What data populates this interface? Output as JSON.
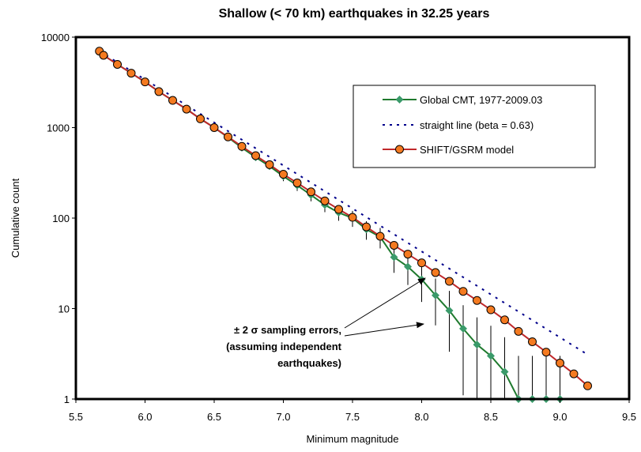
{
  "chart_data": {
    "type": "line",
    "title": "Shallow (< 70 km) earthquakes in 32.25 years",
    "xlabel": "Minimum magnitude",
    "ylabel": "Cumulative count",
    "xlim": [
      5.5,
      9.5
    ],
    "ylim": [
      1,
      10000
    ],
    "yscale": "log",
    "xticks": [
      "5.5",
      "6.0",
      "6.5",
      "7.0",
      "7.5",
      "8.0",
      "8.5",
      "9.0",
      "9.5"
    ],
    "yticks": [
      "1",
      "10",
      "100",
      "1000",
      "10000"
    ],
    "grid": false,
    "legend_position": "top-right",
    "series": [
      {
        "name": "Global CMT, 1977-2009.03",
        "color": "#1f7a2e",
        "marker_color": "#3a9a6a",
        "marker": "diamond",
        "x": [
          5.67,
          5.7,
          5.8,
          5.9,
          6.0,
          6.1,
          6.2,
          6.3,
          6.4,
          6.5,
          6.6,
          6.7,
          6.8,
          6.9,
          7.0,
          7.1,
          7.2,
          7.3,
          7.4,
          7.5,
          7.6,
          7.7,
          7.8,
          7.9,
          8.0,
          8.1,
          8.2,
          8.3,
          8.4,
          8.5,
          8.6,
          8.7,
          8.8,
          8.9,
          9.0
        ],
        "y": [
          7000,
          6300,
          5000,
          4000,
          3200,
          2500,
          2000,
          1600,
          1250,
          1000,
          780,
          600,
          470,
          375,
          290,
          230,
          180,
          140,
          115,
          100,
          75,
          62,
          37,
          29,
          21,
          14,
          9.5,
          6,
          4,
          3,
          2,
          1,
          1,
          1,
          1
        ],
        "error_bars_x": [
          7.0,
          7.1,
          7.2,
          7.3,
          7.4,
          7.5,
          7.6,
          7.7,
          7.8,
          7.9,
          8.0,
          8.1,
          8.2,
          8.3,
          8.4,
          8.5,
          8.6,
          8.7,
          8.8,
          8.9,
          9.0
        ]
      },
      {
        "name": "straight line (beta = 0.63)",
        "color": "#00008b",
        "style": "dotted",
        "x": [
          5.67,
          9.2
        ],
        "y": [
          7000,
          3.1
        ]
      },
      {
        "name": "SHIFT/GSRM model",
        "color": "#c0282a",
        "marker_color": "#f47a20",
        "marker": "circle",
        "x": [
          5.67,
          5.7,
          5.8,
          5.9,
          6.0,
          6.1,
          6.2,
          6.3,
          6.4,
          6.5,
          6.6,
          6.7,
          6.8,
          6.9,
          7.0,
          7.1,
          7.2,
          7.3,
          7.4,
          7.5,
          7.6,
          7.7,
          7.8,
          7.9,
          8.0,
          8.1,
          8.2,
          8.3,
          8.4,
          8.5,
          8.6,
          8.7,
          8.8,
          8.9,
          9.0,
          9.1,
          9.2
        ],
        "y": [
          7000,
          6300,
          5000,
          4000,
          3200,
          2500,
          2000,
          1600,
          1250,
          1000,
          790,
          620,
          490,
          390,
          305,
          245,
          195,
          155,
          125,
          102,
          80,
          63,
          50,
          40,
          32,
          25,
          20,
          15.5,
          12.3,
          9.7,
          7.5,
          5.6,
          4.3,
          3.3,
          2.5,
          1.9,
          1.4
        ]
      }
    ],
    "annotation": {
      "lines": [
        "± 2 σ sampling errors,",
        "(assuming independent",
        "earthquakes)"
      ]
    }
  }
}
